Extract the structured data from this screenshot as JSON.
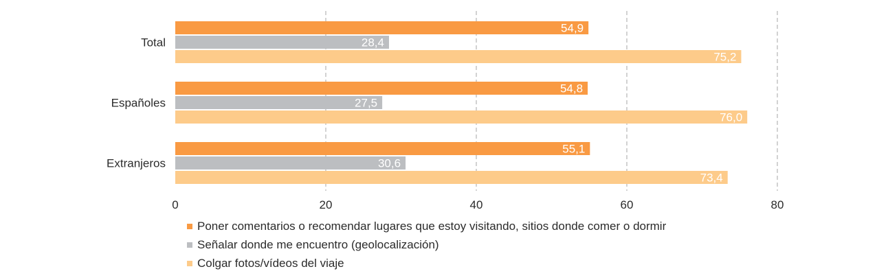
{
  "chart_data": {
    "type": "bar",
    "orientation": "horizontal",
    "categories": [
      "Total",
      "Españoles",
      "Extranjeros"
    ],
    "series": [
      {
        "name": "Poner comentarios o recomendar lugares que estoy visitando, sitios donde comer o dormir",
        "values": [
          54.9,
          54.8,
          55.1
        ],
        "value_labels": [
          "54,9",
          "54,8",
          "55,1"
        ],
        "color": "#f99a43"
      },
      {
        "name": "Señalar donde me encuentro (geolocalización)",
        "values": [
          28.4,
          27.5,
          30.6
        ],
        "value_labels": [
          "28,4",
          "27,5",
          "30,6"
        ],
        "color": "#bcbec1"
      },
      {
        "name": "Colgar fotos/vídeos del viaje",
        "values": [
          75.2,
          76.0,
          73.4
        ],
        "value_labels": [
          "75,2",
          "76,0",
          "73,4"
        ],
        "color": "#fdcb8a"
      }
    ],
    "xlim": [
      0,
      80
    ],
    "xticks": [
      0,
      20,
      40,
      60,
      80
    ],
    "xtick_labels": [
      "0",
      "20",
      "40",
      "60",
      "80"
    ],
    "grid": true,
    "legend_position": "bottom"
  }
}
